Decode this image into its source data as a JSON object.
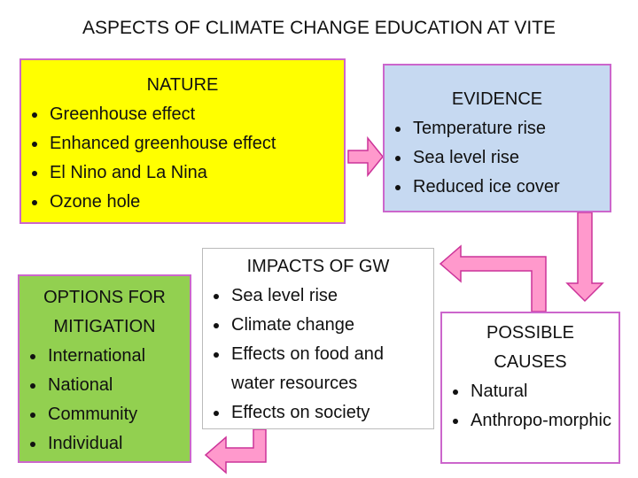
{
  "title": "ASPECTS OF CLIMATE CHANGE EDUCATION AT VITE",
  "boxes": {
    "nature": {
      "heading": "NATURE",
      "items": [
        "Greenhouse effect",
        "Enhanced greenhouse effect",
        "El Nino and La Nina",
        "Ozone hole"
      ]
    },
    "evidence": {
      "heading": "EVIDENCE",
      "items": [
        "Temperature rise",
        "Sea level rise",
        "Reduced ice cover"
      ]
    },
    "impacts": {
      "heading": "IMPACTS OF GW",
      "items": [
        "Sea level rise",
        "Climate change",
        "Effects on food and water resources",
        "Effects on society"
      ]
    },
    "mitigation": {
      "heading": "OPTIONS FOR MITIGATION",
      "items": [
        "International",
        "National",
        "Community",
        "Individual"
      ]
    },
    "causes": {
      "heading": "POSSIBLE CAUSES",
      "items": [
        "Natural",
        "Anthropo-morphic"
      ]
    }
  }
}
